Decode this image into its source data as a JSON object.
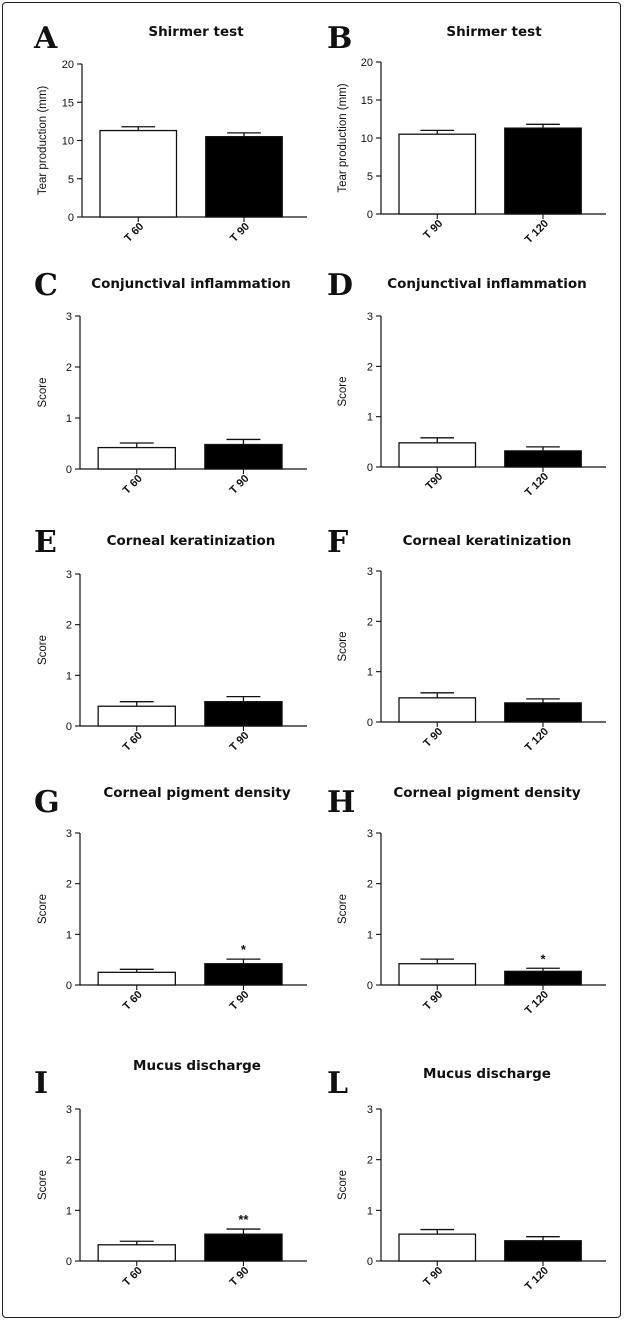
{
  "colors": {
    "open_bar": "#ffffff",
    "filled_bar": "#000000",
    "axis": "#111111"
  },
  "chart_data": [
    {
      "id": "A",
      "type": "bar",
      "panel_label": "A",
      "title": "Shirmer test",
      "ylabel": "Tear production (mm)",
      "ylim": [
        0,
        20
      ],
      "yticks": [
        "0",
        "5",
        "10",
        "15",
        "20"
      ],
      "categories": [
        "T 60",
        "T 90"
      ],
      "values": [
        11.3,
        10.5
      ],
      "errors": [
        0.5,
        0.5
      ],
      "fills": [
        "white",
        "black"
      ],
      "annotations": [
        "",
        ""
      ]
    },
    {
      "id": "B",
      "type": "bar",
      "panel_label": "B",
      "title": "Shirmer test",
      "ylabel": "Tear production (mm)",
      "ylim": [
        0,
        20
      ],
      "yticks": [
        "0",
        "5",
        "10",
        "15",
        "20"
      ],
      "categories": [
        "T 90",
        "T 120"
      ],
      "values": [
        10.5,
        11.3
      ],
      "errors": [
        0.5,
        0.5
      ],
      "fills": [
        "white",
        "black"
      ],
      "annotations": [
        "",
        ""
      ]
    },
    {
      "id": "C",
      "type": "bar",
      "panel_label": "C",
      "title": "Conjunctival inflammation",
      "ylabel": "Score",
      "ylim": [
        0,
        3
      ],
      "yticks": [
        "0",
        "1",
        "2",
        "3"
      ],
      "categories": [
        "T 60",
        "T 90"
      ],
      "values": [
        0.42,
        0.48
      ],
      "errors": [
        0.09,
        0.1
      ],
      "fills": [
        "white",
        "black"
      ],
      "annotations": [
        "",
        ""
      ]
    },
    {
      "id": "D",
      "type": "bar",
      "panel_label": "D",
      "title": "Conjunctival inflammation",
      "ylabel": "Score",
      "ylim": [
        0,
        3
      ],
      "yticks": [
        "0",
        "1",
        "2",
        "3"
      ],
      "categories": [
        "T90",
        "T 120"
      ],
      "values": [
        0.48,
        0.32
      ],
      "errors": [
        0.1,
        0.08
      ],
      "fills": [
        "white",
        "black"
      ],
      "annotations": [
        "",
        ""
      ]
    },
    {
      "id": "E",
      "type": "bar",
      "panel_label": "E",
      "title": "Corneal keratinization",
      "ylabel": "Score",
      "ylim": [
        0,
        3
      ],
      "yticks": [
        "0",
        "1",
        "2",
        "3"
      ],
      "categories": [
        "T 60",
        "T 90"
      ],
      "values": [
        0.39,
        0.48
      ],
      "errors": [
        0.09,
        0.1
      ],
      "fills": [
        "white",
        "black"
      ],
      "annotations": [
        "",
        ""
      ]
    },
    {
      "id": "F",
      "type": "bar",
      "panel_label": "F",
      "title": "Corneal keratinization",
      "ylabel": "Score",
      "ylim": [
        0,
        3
      ],
      "yticks": [
        "0",
        "1",
        "2",
        "3"
      ],
      "categories": [
        "T 90",
        "T 120"
      ],
      "values": [
        0.48,
        0.38
      ],
      "errors": [
        0.1,
        0.08
      ],
      "fills": [
        "white",
        "black"
      ],
      "annotations": [
        "",
        ""
      ]
    },
    {
      "id": "G",
      "type": "bar",
      "panel_label": "G",
      "title": "Corneal pigment density",
      "ylabel": "Score",
      "ylim": [
        0,
        3
      ],
      "yticks": [
        "0",
        "1",
        "2",
        "3"
      ],
      "categories": [
        "T 60",
        "T 90"
      ],
      "values": [
        0.25,
        0.42
      ],
      "errors": [
        0.06,
        0.09
      ],
      "fills": [
        "white",
        "black"
      ],
      "annotations": [
        "",
        "*"
      ]
    },
    {
      "id": "H",
      "type": "bar",
      "panel_label": "H",
      "title": "Corneal pigment density",
      "ylabel": "Score",
      "ylim": [
        0,
        3
      ],
      "yticks": [
        "0",
        "1",
        "2",
        "3"
      ],
      "categories": [
        "T 90",
        "T 120"
      ],
      "values": [
        0.42,
        0.27
      ],
      "errors": [
        0.09,
        0.06
      ],
      "fills": [
        "white",
        "black"
      ],
      "annotations": [
        "",
        "*"
      ]
    },
    {
      "id": "I",
      "type": "bar",
      "panel_label": "I",
      "title": "Mucus discharge",
      "ylabel": "Score",
      "ylim": [
        0,
        3
      ],
      "yticks": [
        "0",
        "1",
        "2",
        "3"
      ],
      "categories": [
        "T 60",
        "T 90"
      ],
      "values": [
        0.32,
        0.53
      ],
      "errors": [
        0.07,
        0.1
      ],
      "fills": [
        "white",
        "black"
      ],
      "annotations": [
        "",
        "**"
      ]
    },
    {
      "id": "L",
      "type": "bar",
      "panel_label": "L",
      "title": "Mucus discharge",
      "ylabel": "Score",
      "ylim": [
        0,
        3
      ],
      "yticks": [
        "0",
        "1",
        "2",
        "3"
      ],
      "categories": [
        "T 90",
        "T 120"
      ],
      "values": [
        0.53,
        0.4
      ],
      "errors": [
        0.09,
        0.08
      ],
      "fills": [
        "white",
        "black"
      ],
      "annotations": [
        "",
        ""
      ]
    }
  ]
}
